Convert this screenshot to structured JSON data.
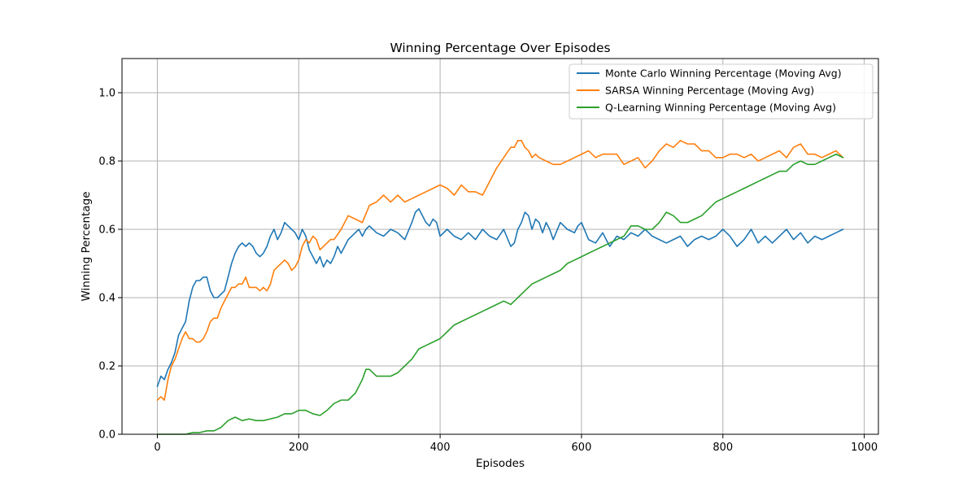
{
  "chart_data": {
    "type": "line",
    "title": "Winning Percentage Over Episodes",
    "xlabel": "Episodes",
    "ylabel": "Winning Percentage",
    "xlim": [
      -50,
      1020
    ],
    "ylim": [
      0.0,
      1.1
    ],
    "xticks": [
      0,
      200,
      400,
      600,
      800,
      1000
    ],
    "xtick_labels": [
      "0",
      "200",
      "400",
      "600",
      "800",
      "1000"
    ],
    "yticks": [
      0.0,
      0.2,
      0.4,
      0.6,
      0.8,
      1.0
    ],
    "ytick_labels": [
      "0.0",
      "0.2",
      "0.4",
      "0.6",
      "0.8",
      "1.0"
    ],
    "grid": true,
    "legend_position": "top-right",
    "series": [
      {
        "name": "Monte Carlo Winning Percentage (Moving Avg)",
        "color": "#1f77b4",
        "x": [
          0,
          5,
          10,
          15,
          20,
          25,
          30,
          35,
          40,
          45,
          50,
          55,
          60,
          65,
          70,
          75,
          80,
          85,
          90,
          95,
          100,
          105,
          110,
          115,
          120,
          125,
          130,
          135,
          140,
          145,
          150,
          155,
          160,
          165,
          170,
          175,
          180,
          185,
          190,
          195,
          200,
          205,
          210,
          215,
          220,
          225,
          230,
          235,
          240,
          245,
          250,
          255,
          260,
          265,
          270,
          275,
          280,
          285,
          290,
          295,
          300,
          310,
          320,
          330,
          340,
          350,
          360,
          365,
          370,
          375,
          380,
          385,
          390,
          395,
          400,
          410,
          420,
          430,
          440,
          450,
          460,
          470,
          480,
          490,
          500,
          505,
          510,
          515,
          520,
          525,
          530,
          535,
          540,
          545,
          550,
          555,
          560,
          570,
          580,
          590,
          595,
          600,
          610,
          620,
          630,
          640,
          650,
          660,
          670,
          680,
          690,
          700,
          710,
          720,
          730,
          740,
          750,
          760,
          770,
          780,
          790,
          800,
          810,
          820,
          830,
          840,
          850,
          860,
          870,
          880,
          890,
          900,
          910,
          920,
          930,
          940,
          950,
          960,
          970
        ],
        "y": [
          0.14,
          0.17,
          0.16,
          0.19,
          0.21,
          0.24,
          0.29,
          0.31,
          0.33,
          0.39,
          0.43,
          0.45,
          0.45,
          0.46,
          0.46,
          0.42,
          0.4,
          0.4,
          0.41,
          0.42,
          0.46,
          0.5,
          0.53,
          0.55,
          0.56,
          0.55,
          0.56,
          0.55,
          0.53,
          0.52,
          0.53,
          0.55,
          0.58,
          0.6,
          0.57,
          0.59,
          0.62,
          0.61,
          0.6,
          0.59,
          0.57,
          0.6,
          0.58,
          0.54,
          0.52,
          0.5,
          0.52,
          0.49,
          0.51,
          0.5,
          0.52,
          0.55,
          0.53,
          0.55,
          0.57,
          0.58,
          0.59,
          0.6,
          0.58,
          0.6,
          0.61,
          0.59,
          0.58,
          0.6,
          0.59,
          0.57,
          0.62,
          0.65,
          0.66,
          0.64,
          0.62,
          0.61,
          0.63,
          0.62,
          0.58,
          0.6,
          0.58,
          0.57,
          0.59,
          0.57,
          0.6,
          0.58,
          0.57,
          0.6,
          0.55,
          0.56,
          0.6,
          0.62,
          0.65,
          0.64,
          0.6,
          0.63,
          0.62,
          0.59,
          0.62,
          0.6,
          0.57,
          0.62,
          0.6,
          0.59,
          0.61,
          0.62,
          0.57,
          0.56,
          0.59,
          0.55,
          0.58,
          0.57,
          0.59,
          0.58,
          0.6,
          0.58,
          0.57,
          0.56,
          0.57,
          0.58,
          0.55,
          0.57,
          0.58,
          0.57,
          0.58,
          0.6,
          0.58,
          0.55,
          0.57,
          0.6,
          0.56,
          0.58,
          0.56,
          0.58,
          0.6,
          0.57,
          0.59,
          0.56,
          0.58,
          0.57,
          0.58,
          0.59,
          0.6
        ]
      },
      {
        "name": "SARSA Winning Percentage (Moving Avg)",
        "color": "#ff7f0e",
        "x": [
          0,
          5,
          10,
          15,
          20,
          25,
          30,
          35,
          40,
          45,
          50,
          55,
          60,
          65,
          70,
          75,
          80,
          85,
          90,
          95,
          100,
          105,
          110,
          115,
          120,
          125,
          130,
          135,
          140,
          145,
          150,
          155,
          160,
          165,
          170,
          175,
          180,
          185,
          190,
          195,
          200,
          205,
          210,
          215,
          220,
          225,
          230,
          235,
          240,
          245,
          250,
          260,
          270,
          280,
          290,
          300,
          310,
          320,
          330,
          340,
          350,
          360,
          370,
          380,
          390,
          400,
          410,
          420,
          430,
          440,
          450,
          460,
          470,
          480,
          490,
          500,
          505,
          510,
          515,
          520,
          525,
          530,
          535,
          540,
          550,
          560,
          570,
          580,
          590,
          600,
          610,
          620,
          630,
          640,
          650,
          660,
          670,
          680,
          690,
          700,
          710,
          720,
          730,
          740,
          750,
          760,
          770,
          780,
          790,
          800,
          810,
          820,
          830,
          840,
          850,
          860,
          870,
          880,
          890,
          900,
          910,
          920,
          930,
          940,
          950,
          960,
          970
        ],
        "y": [
          0.1,
          0.11,
          0.1,
          0.16,
          0.2,
          0.22,
          0.25,
          0.28,
          0.3,
          0.28,
          0.28,
          0.27,
          0.27,
          0.28,
          0.3,
          0.33,
          0.34,
          0.34,
          0.37,
          0.39,
          0.41,
          0.43,
          0.43,
          0.44,
          0.44,
          0.46,
          0.43,
          0.43,
          0.43,
          0.42,
          0.43,
          0.42,
          0.44,
          0.48,
          0.49,
          0.5,
          0.51,
          0.5,
          0.48,
          0.49,
          0.51,
          0.55,
          0.57,
          0.56,
          0.58,
          0.57,
          0.54,
          0.55,
          0.56,
          0.57,
          0.57,
          0.6,
          0.64,
          0.63,
          0.62,
          0.67,
          0.68,
          0.7,
          0.68,
          0.7,
          0.68,
          0.69,
          0.7,
          0.71,
          0.72,
          0.73,
          0.72,
          0.7,
          0.73,
          0.71,
          0.71,
          0.7,
          0.74,
          0.78,
          0.81,
          0.84,
          0.84,
          0.86,
          0.86,
          0.84,
          0.83,
          0.81,
          0.82,
          0.81,
          0.8,
          0.79,
          0.79,
          0.8,
          0.81,
          0.82,
          0.83,
          0.81,
          0.82,
          0.82,
          0.82,
          0.79,
          0.8,
          0.81,
          0.78,
          0.8,
          0.83,
          0.85,
          0.84,
          0.86,
          0.85,
          0.85,
          0.83,
          0.83,
          0.81,
          0.81,
          0.82,
          0.82,
          0.81,
          0.82,
          0.8,
          0.81,
          0.82,
          0.83,
          0.81,
          0.84,
          0.85,
          0.82,
          0.82,
          0.81,
          0.82,
          0.83,
          0.81
        ]
      },
      {
        "name": "Q-Learning Winning Percentage (Moving Avg)",
        "color": "#2ca02c",
        "x": [
          0,
          10,
          20,
          30,
          40,
          50,
          60,
          70,
          80,
          90,
          100,
          110,
          120,
          130,
          140,
          150,
          160,
          170,
          180,
          190,
          200,
          210,
          220,
          230,
          240,
          250,
          260,
          270,
          280,
          290,
          295,
          300,
          305,
          310,
          320,
          330,
          340,
          350,
          360,
          370,
          380,
          390,
          400,
          410,
          420,
          430,
          440,
          450,
          460,
          470,
          480,
          490,
          500,
          510,
          520,
          530,
          540,
          550,
          560,
          570,
          580,
          590,
          600,
          610,
          620,
          630,
          640,
          650,
          660,
          670,
          680,
          690,
          700,
          710,
          720,
          730,
          740,
          750,
          760,
          770,
          780,
          790,
          800,
          810,
          820,
          830,
          840,
          850,
          860,
          870,
          880,
          890,
          900,
          910,
          920,
          930,
          940,
          950,
          960,
          970
        ],
        "y": [
          0.0,
          0.0,
          0.0,
          0.0,
          0.0,
          0.005,
          0.005,
          0.01,
          0.01,
          0.02,
          0.04,
          0.05,
          0.04,
          0.045,
          0.04,
          0.04,
          0.045,
          0.05,
          0.06,
          0.06,
          0.07,
          0.07,
          0.06,
          0.055,
          0.07,
          0.09,
          0.1,
          0.1,
          0.12,
          0.16,
          0.19,
          0.19,
          0.18,
          0.17,
          0.17,
          0.17,
          0.18,
          0.2,
          0.22,
          0.25,
          0.26,
          0.27,
          0.28,
          0.3,
          0.32,
          0.33,
          0.34,
          0.35,
          0.36,
          0.37,
          0.38,
          0.39,
          0.38,
          0.4,
          0.42,
          0.44,
          0.45,
          0.46,
          0.47,
          0.48,
          0.5,
          0.51,
          0.52,
          0.53,
          0.54,
          0.55,
          0.56,
          0.57,
          0.58,
          0.61,
          0.61,
          0.6,
          0.6,
          0.62,
          0.65,
          0.64,
          0.62,
          0.62,
          0.63,
          0.64,
          0.66,
          0.68,
          0.69,
          0.7,
          0.71,
          0.72,
          0.73,
          0.74,
          0.75,
          0.76,
          0.77,
          0.77,
          0.79,
          0.8,
          0.79,
          0.79,
          0.8,
          0.81,
          0.82,
          0.81
        ]
      }
    ]
  }
}
